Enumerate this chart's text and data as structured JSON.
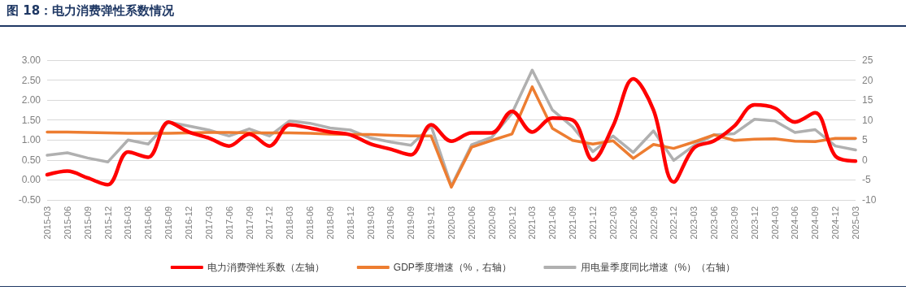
{
  "chart_data": {
    "type": "line",
    "title": "图 18：电力消费弹性系数情况",
    "categories": [
      "2015-03",
      "2015-06",
      "2015-09",
      "2015-12",
      "2016-03",
      "2016-06",
      "2016-09",
      "2016-12",
      "2017-03",
      "2017-06",
      "2017-09",
      "2017-12",
      "2018-03",
      "2018-06",
      "2018-09",
      "2018-12",
      "2019-03",
      "2019-06",
      "2019-09",
      "2019-12",
      "2020-03",
      "2020-06",
      "2020-09",
      "2020-12",
      "2021-03",
      "2021-06",
      "2021-09",
      "2021-12",
      "2022-03",
      "2022-06",
      "2022-09",
      "2022-12",
      "2023-03",
      "2023-06",
      "2023-09",
      "2023-12",
      "2024-03",
      "2024-06",
      "2024-09",
      "2024-12",
      "2025-03"
    ],
    "series": [
      {
        "name": "电力消费弹性系数（左轴）",
        "color": "#ff0000",
        "values": [
          0.13,
          0.22,
          0.05,
          -0.12,
          0.7,
          0.57,
          1.45,
          1.2,
          1.05,
          0.85,
          1.15,
          0.85,
          1.38,
          1.3,
          1.2,
          1.13,
          0.9,
          0.77,
          0.63,
          1.38,
          0.97,
          1.18,
          1.18,
          1.72,
          1.2,
          1.55,
          1.5,
          0.5,
          1.35,
          2.53,
          1.75,
          -0.05,
          0.8,
          0.98,
          1.35,
          1.88,
          1.8,
          1.45,
          1.68,
          0.6,
          0.47
        ]
      },
      {
        "name": "GDP季度增速（%，右轴）",
        "color": "#ed7d31",
        "axis": "y2",
        "values": [
          7.0,
          7.0,
          6.9,
          6.8,
          6.7,
          6.7,
          6.7,
          6.8,
          6.9,
          6.9,
          6.8,
          6.8,
          6.8,
          6.7,
          6.5,
          6.4,
          6.4,
          6.2,
          6.0,
          6.0,
          -6.8,
          3.2,
          4.9,
          6.5,
          18.3,
          7.9,
          4.9,
          4.0,
          4.8,
          0.4,
          3.9,
          2.9,
          4.5,
          6.3,
          4.9,
          5.2,
          5.3,
          4.7,
          4.6,
          5.4,
          5.4
        ]
      },
      {
        "name": "用电量季度同比增速（%）（右轴）",
        "color": "#b0b0b0",
        "axis": "y2",
        "values": [
          1.2,
          1.8,
          0.5,
          -0.5,
          5.0,
          4.0,
          9.5,
          8.5,
          7.5,
          6.0,
          7.8,
          6.0,
          9.8,
          9.2,
          8.0,
          7.5,
          5.5,
          4.5,
          3.7,
          8.5,
          -6.5,
          3.8,
          5.7,
          11.7,
          22.5,
          12.5,
          8.3,
          2.1,
          6.0,
          1.9,
          7.3,
          -0.1,
          3.6,
          6.3,
          6.6,
          10.2,
          9.8,
          6.9,
          7.6,
          3.5,
          2.5
        ]
      }
    ],
    "ylim": [
      -0.5,
      3
    ],
    "yticks": [
      {
        "value": -0.5,
        "label": "-0.50"
      },
      {
        "value": 0,
        "label": "0.00"
      },
      {
        "value": 0.5,
        "label": "0.50"
      },
      {
        "value": 1,
        "label": "1.00"
      },
      {
        "value": 1.5,
        "label": "1.50"
      },
      {
        "value": 2,
        "label": "2.00"
      },
      {
        "value": 2.5,
        "label": "2.50"
      },
      {
        "value": 3,
        "label": "3.00"
      }
    ],
    "y2lim": [
      -10,
      25
    ],
    "y2ticks": [
      -10,
      -5,
      0,
      5,
      10,
      15,
      20,
      25
    ],
    "grid": "y",
    "legend": "bottom",
    "marker": "none",
    "line_style": "solid"
  }
}
